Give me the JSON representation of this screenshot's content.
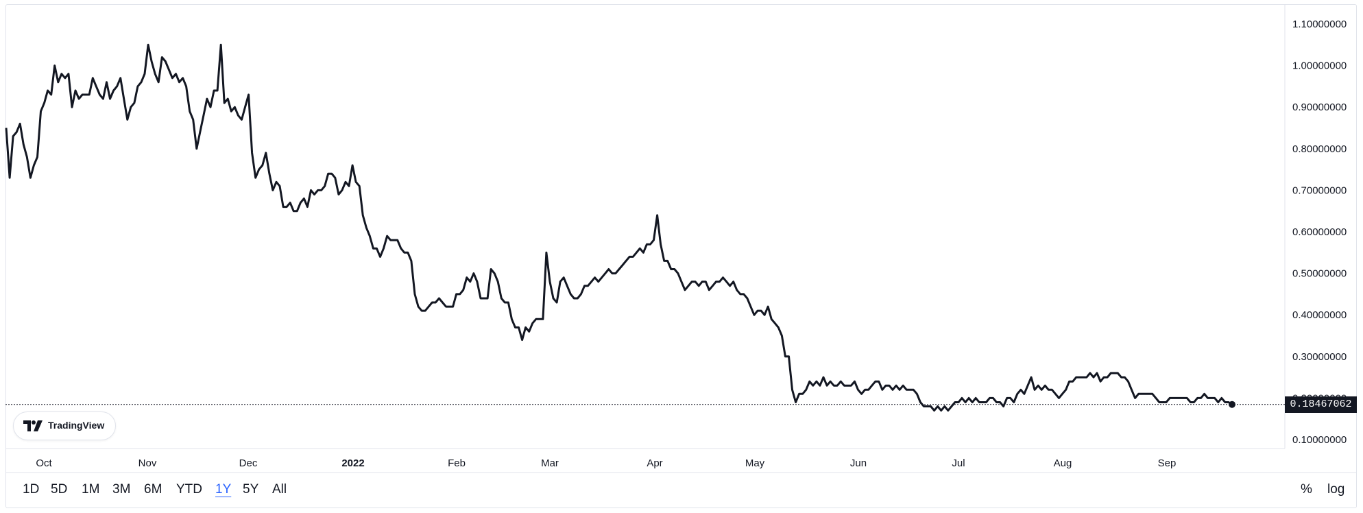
{
  "chart_data": {
    "type": "line",
    "x_labels": [
      "Oct",
      "Nov",
      "Dec",
      "2022",
      "Feb",
      "Mar",
      "Apr",
      "May",
      "Jun",
      "Jul",
      "Aug",
      "Sep"
    ],
    "y_ticks": [
      "1.10000000",
      "1.00000000",
      "0.90000000",
      "0.80000000",
      "0.70000000",
      "0.60000000",
      "0.50000000",
      "0.40000000",
      "0.30000000",
      "0.20000000",
      "0.10000000"
    ],
    "ylim": [
      0.1,
      1.1
    ],
    "last_value": 0.18467062,
    "last_value_label": "0.18467062",
    "series": [
      {
        "values": [
          0.85,
          0.73,
          0.83,
          0.84,
          0.86,
          0.81,
          0.78,
          0.73,
          0.76,
          0.78,
          0.89,
          0.91,
          0.94,
          0.93,
          1.0,
          0.96,
          0.98,
          0.97,
          0.98,
          0.9,
          0.94,
          0.92,
          0.93,
          0.93,
          0.93,
          0.97,
          0.95,
          0.93,
          0.92,
          0.96,
          0.92,
          0.94,
          0.95,
          0.97,
          0.92,
          0.87,
          0.9,
          0.91,
          0.95,
          0.96,
          0.98,
          1.05,
          1.01,
          0.98,
          0.96,
          1.02,
          1.01,
          0.99,
          0.97,
          0.98,
          0.96,
          0.97,
          0.95,
          0.89,
          0.87,
          0.8,
          0.84,
          0.88,
          0.92,
          0.9,
          0.94,
          0.94,
          1.05,
          0.91,
          0.92,
          0.89,
          0.9,
          0.88,
          0.87,
          0.9,
          0.93,
          0.79,
          0.73,
          0.75,
          0.76,
          0.79,
          0.74,
          0.7,
          0.72,
          0.71,
          0.66,
          0.66,
          0.67,
          0.65,
          0.65,
          0.67,
          0.68,
          0.66,
          0.7,
          0.69,
          0.7,
          0.7,
          0.71,
          0.74,
          0.74,
          0.73,
          0.69,
          0.7,
          0.72,
          0.71,
          0.76,
          0.72,
          0.71,
          0.64,
          0.61,
          0.59,
          0.56,
          0.56,
          0.54,
          0.56,
          0.59,
          0.58,
          0.58,
          0.58,
          0.56,
          0.55,
          0.55,
          0.53,
          0.45,
          0.42,
          0.41,
          0.41,
          0.42,
          0.43,
          0.43,
          0.44,
          0.43,
          0.42,
          0.42,
          0.42,
          0.45,
          0.45,
          0.46,
          0.49,
          0.48,
          0.5,
          0.48,
          0.44,
          0.44,
          0.44,
          0.51,
          0.5,
          0.48,
          0.44,
          0.43,
          0.43,
          0.39,
          0.37,
          0.37,
          0.34,
          0.37,
          0.36,
          0.38,
          0.39,
          0.39,
          0.39,
          0.55,
          0.48,
          0.44,
          0.43,
          0.48,
          0.49,
          0.47,
          0.45,
          0.44,
          0.44,
          0.45,
          0.47,
          0.47,
          0.48,
          0.49,
          0.48,
          0.49,
          0.5,
          0.51,
          0.5,
          0.5,
          0.51,
          0.52,
          0.53,
          0.54,
          0.54,
          0.55,
          0.56,
          0.55,
          0.57,
          0.57,
          0.58,
          0.64,
          0.57,
          0.53,
          0.53,
          0.51,
          0.51,
          0.5,
          0.48,
          0.46,
          0.47,
          0.48,
          0.48,
          0.47,
          0.48,
          0.48,
          0.46,
          0.47,
          0.48,
          0.48,
          0.49,
          0.48,
          0.47,
          0.48,
          0.46,
          0.45,
          0.45,
          0.44,
          0.42,
          0.4,
          0.41,
          0.41,
          0.4,
          0.42,
          0.39,
          0.38,
          0.37,
          0.35,
          0.3,
          0.3,
          0.22,
          0.19,
          0.21,
          0.21,
          0.22,
          0.24,
          0.23,
          0.24,
          0.23,
          0.25,
          0.23,
          0.24,
          0.23,
          0.23,
          0.24,
          0.23,
          0.23,
          0.23,
          0.24,
          0.22,
          0.21,
          0.22,
          0.22,
          0.23,
          0.24,
          0.24,
          0.22,
          0.23,
          0.23,
          0.22,
          0.23,
          0.22,
          0.23,
          0.22,
          0.22,
          0.22,
          0.21,
          0.19,
          0.18,
          0.18,
          0.18,
          0.17,
          0.18,
          0.17,
          0.18,
          0.17,
          0.18,
          0.19,
          0.19,
          0.2,
          0.19,
          0.2,
          0.19,
          0.2,
          0.19,
          0.19,
          0.19,
          0.2,
          0.2,
          0.19,
          0.19,
          0.18,
          0.2,
          0.2,
          0.19,
          0.21,
          0.22,
          0.21,
          0.23,
          0.25,
          0.22,
          0.23,
          0.22,
          0.23,
          0.22,
          0.22,
          0.21,
          0.2,
          0.21,
          0.22,
          0.24,
          0.24,
          0.25,
          0.25,
          0.25,
          0.25,
          0.26,
          0.25,
          0.26,
          0.24,
          0.25,
          0.25,
          0.26,
          0.26,
          0.26,
          0.25,
          0.25,
          0.24,
          0.22,
          0.2,
          0.21,
          0.21,
          0.21,
          0.21,
          0.21,
          0.2,
          0.19,
          0.19,
          0.19,
          0.2,
          0.2,
          0.2,
          0.2,
          0.2,
          0.2,
          0.19,
          0.19,
          0.2,
          0.2,
          0.21,
          0.2,
          0.2,
          0.2,
          0.19,
          0.2,
          0.19,
          0.19,
          0.18467062
        ]
      }
    ],
    "grid": false,
    "reference_line": "dotted at last value"
  },
  "range_buttons": [
    "1D",
    "5D",
    "1M",
    "3M",
    "6M",
    "YTD",
    "1Y",
    "5Y",
    "All"
  ],
  "active_range": "1Y",
  "right_controls": {
    "percent": "%",
    "log": "log"
  },
  "badge": {
    "text": "TradingView",
    "icon": "tradingview-logo-icon"
  },
  "colors": {
    "line": "#131722",
    "active": "#2962ff",
    "tag_bg": "#131722",
    "border": "#e0e3eb"
  }
}
